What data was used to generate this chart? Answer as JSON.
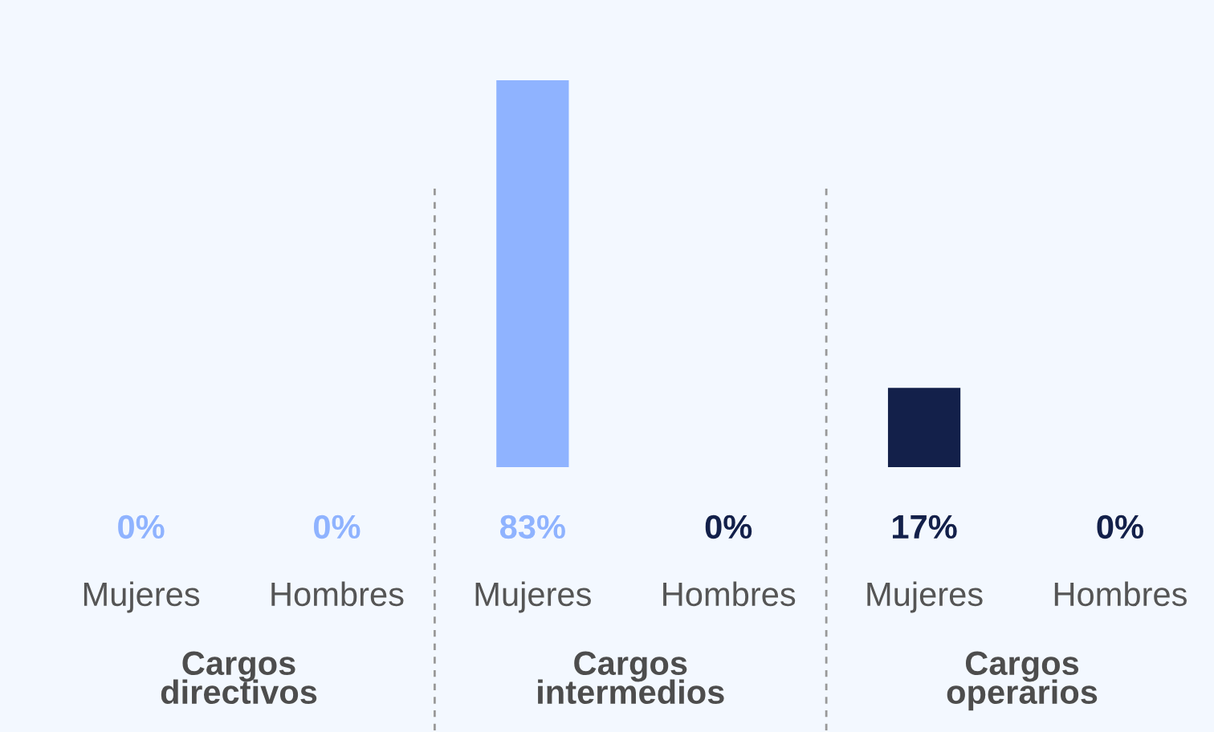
{
  "chart_data": {
    "type": "bar",
    "categories": [
      "Mujeres",
      "Hombres",
      "Mujeres",
      "Hombres",
      "Mujeres",
      "Hombres"
    ],
    "values": [
      0,
      0,
      83,
      0,
      17,
      0
    ],
    "colors": [
      "#8fb3ff",
      "#8fb3ff",
      "#8fb3ff",
      "#13204a",
      "#13204a",
      "#13204a"
    ],
    "value_labels": [
      "0%",
      "0%",
      "83%",
      "0%",
      "17%",
      "0%"
    ],
    "annotations": [
      "Cargos\ndirectivos",
      "Cargos\nintermedios",
      "Cargos\noperarios"
    ],
    "legend": false
  }
}
